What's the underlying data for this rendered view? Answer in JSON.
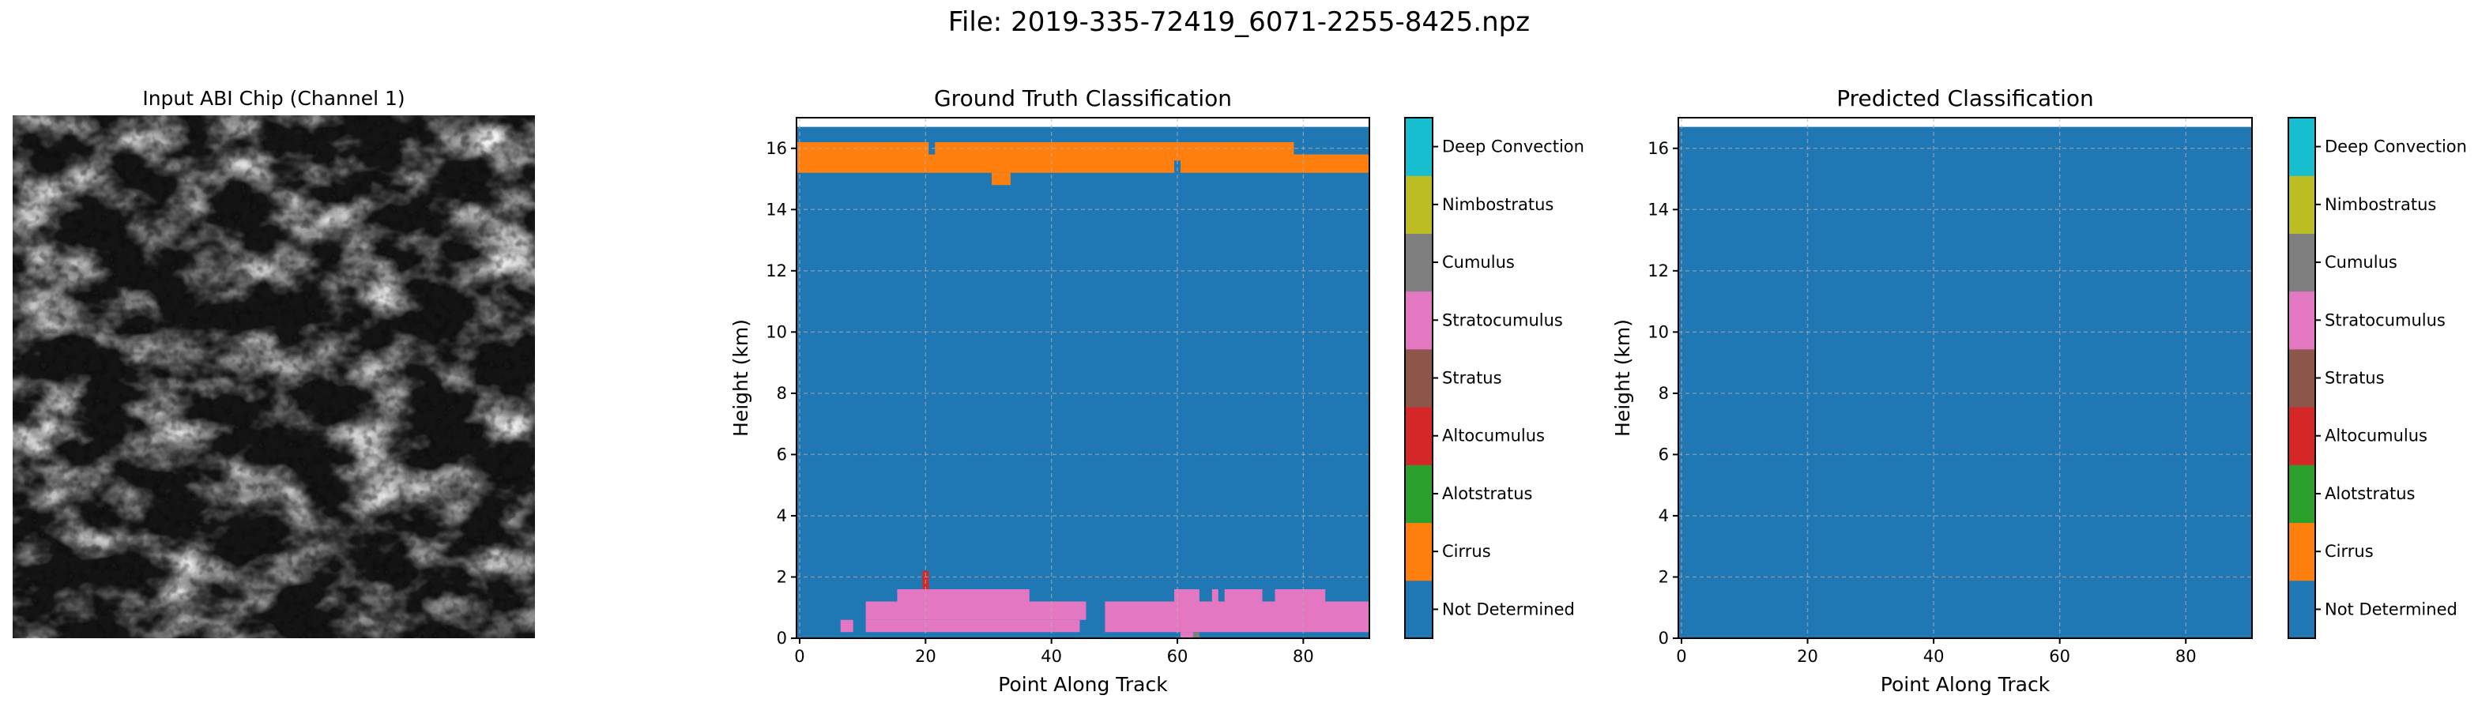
{
  "figure_title": "File: 2019-335-72419_6071-2255-8425.npz",
  "colors": {
    "not_determined": "#1f77b4",
    "cirrus": "#ff7f0e",
    "altostratus": "#2ca02c",
    "altocumulus": "#d62728",
    "stratus": "#8c564b",
    "stratocumulus": "#e377c2",
    "nimbostratus": "#bcbd22",
    "cumulus": "#7f7f7f",
    "deep_convection": "#17becf",
    "grid": "#b0b0b0"
  },
  "chart_data": [
    {
      "type": "image",
      "title": "Input ABI Chip (Channel 1)",
      "colormap": "gray"
    },
    {
      "type": "heatmap",
      "title": "Ground Truth Classification",
      "xlabel": "Point Along Track",
      "ylabel": "Height (km)",
      "xlim": [
        -0.5,
        90.5
      ],
      "ylim": [
        0,
        17
      ],
      "xticks": [
        0,
        20,
        40,
        60,
        80
      ],
      "yticks": [
        0,
        2,
        4,
        6,
        8,
        10,
        12,
        14,
        16
      ],
      "grid": true,
      "colorbar_labels": [
        "Not Determined",
        "Cirrus",
        "Alotstratus",
        "Altocumulus",
        "Stratus",
        "Stratocumulus",
        "Cumulus",
        "Nimbostratus",
        "Deep Convection"
      ],
      "colorbar_colors": [
        "#1f77b4",
        "#ff7f0e",
        "#2ca02c",
        "#d62728",
        "#8c564b",
        "#e377c2",
        "#7f7f7f",
        "#bcbd22",
        "#17becf"
      ],
      "background_class": "Not Determined",
      "regions": [
        {
          "class": "Cirrus",
          "x": [
            0,
            91
          ],
          "y": [
            15.2,
            16.2
          ]
        },
        {
          "class": "Cirrus",
          "x": [
            31,
            34
          ],
          "y": [
            14.8,
            15.2
          ]
        },
        {
          "class": "Not Determined",
          "x": [
            21,
            22
          ],
          "y": [
            15.8,
            16.2
          ]
        },
        {
          "class": "Not Determined",
          "x": [
            60,
            61
          ],
          "y": [
            15.2,
            15.6
          ]
        },
        {
          "class": "Not Determined",
          "x": [
            79,
            91
          ],
          "y": [
            15.8,
            16.2
          ]
        },
        {
          "class": "Stratocumulus",
          "x": [
            7,
            9
          ],
          "y": [
            0.2,
            0.6
          ]
        },
        {
          "class": "Stratocumulus",
          "x": [
            11,
            46
          ],
          "y": [
            0.6,
            1.2
          ]
        },
        {
          "class": "Stratocumulus",
          "x": [
            11,
            45
          ],
          "y": [
            0.2,
            0.6
          ]
        },
        {
          "class": "Stratocumulus",
          "x": [
            16,
            37
          ],
          "y": [
            1.2,
            1.6
          ]
        },
        {
          "class": "Stratocumulus",
          "x": [
            49,
            91
          ],
          "y": [
            0.2,
            1.2
          ]
        },
        {
          "class": "Stratocumulus",
          "x": [
            60,
            64
          ],
          "y": [
            1.2,
            1.6
          ]
        },
        {
          "class": "Stratocumulus",
          "x": [
            66,
            67
          ],
          "y": [
            1.2,
            1.6
          ]
        },
        {
          "class": "Stratocumulus",
          "x": [
            68,
            74
          ],
          "y": [
            1.2,
            1.6
          ]
        },
        {
          "class": "Stratocumulus",
          "x": [
            76,
            84
          ],
          "y": [
            1.2,
            1.6
          ]
        },
        {
          "class": "Stratocumulus",
          "x": [
            61,
            63
          ],
          "y": [
            0,
            0.2
          ]
        },
        {
          "class": "Cumulus",
          "x": [
            63,
            64
          ],
          "y": [
            0,
            0.2
          ]
        },
        {
          "class": "Altocumulus",
          "x": [
            20,
            21
          ],
          "y": [
            1.6,
            2.2
          ]
        }
      ]
    },
    {
      "type": "heatmap",
      "title": "Predicted Classification",
      "xlabel": "Point Along Track",
      "ylabel": "Height (km)",
      "xlim": [
        -0.5,
        90.5
      ],
      "ylim": [
        0,
        17
      ],
      "xticks": [
        0,
        20,
        40,
        60,
        80
      ],
      "yticks": [
        0,
        2,
        4,
        6,
        8,
        10,
        12,
        14,
        16
      ],
      "grid": true,
      "colorbar_labels": [
        "Not Determined",
        "Cirrus",
        "Alotstratus",
        "Altocumulus",
        "Stratus",
        "Stratocumulus",
        "Cumulus",
        "Nimbostratus",
        "Deep Convection"
      ],
      "colorbar_colors": [
        "#1f77b4",
        "#ff7f0e",
        "#2ca02c",
        "#d62728",
        "#8c564b",
        "#e377c2",
        "#7f7f7f",
        "#bcbd22",
        "#17becf"
      ],
      "background_class": "Not Determined",
      "regions": []
    }
  ]
}
